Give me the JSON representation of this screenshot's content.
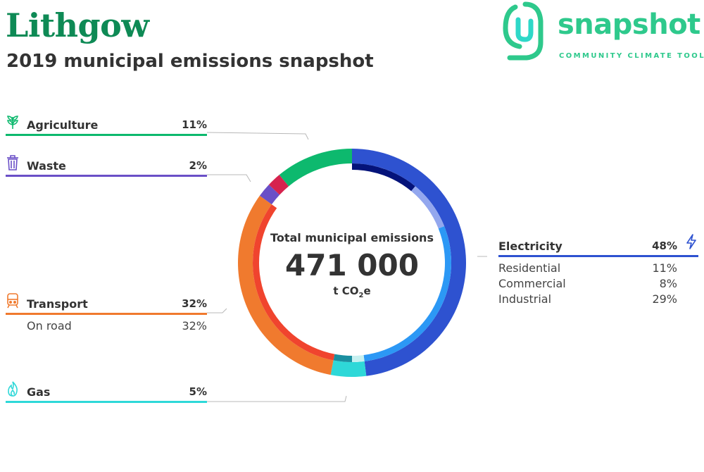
{
  "header": {
    "title": "Lithgow",
    "subtitle": "2019 municipal emissions snapshot"
  },
  "logo": {
    "word": "snapshot",
    "tagline": "COMMUNITY CLIMATE TOOL",
    "color": "#2ec98c"
  },
  "center": {
    "title": "Total municipal emissions",
    "value": "471 000",
    "unit_prefix": "t CO",
    "unit_sub": "2",
    "unit_suffix": "e"
  },
  "categories": {
    "agriculture": {
      "label": "Agriculture",
      "pct": "11%",
      "color": "#0db96e",
      "icon": "plant-icon"
    },
    "waste": {
      "label": "Waste",
      "pct": "2%",
      "color": "#6a4fc7",
      "icon": "trash-bin-icon"
    },
    "transport": {
      "label": "Transport",
      "pct": "32%",
      "color": "#f07a2e",
      "icon": "train-icon",
      "sub": [
        {
          "label": "On road",
          "pct": "32%"
        }
      ]
    },
    "gas": {
      "label": "Gas",
      "pct": "5%",
      "color": "#2ed8d8",
      "icon": "flame-icon"
    },
    "electricity": {
      "label": "Electricity",
      "pct": "48%",
      "color": "#2e52d0",
      "icon": "lightning-icon",
      "sub": [
        {
          "label": "Residential",
          "pct": "11%"
        },
        {
          "label": "Commercial",
          "pct": "8%"
        },
        {
          "label": "Industrial",
          "pct": "29%"
        }
      ]
    }
  },
  "chart_data": {
    "type": "pie",
    "variant": "donut",
    "total": 471000,
    "unit": "t CO2e",
    "series": [
      {
        "name": "Electricity",
        "value": 48,
        "color": "#2e52d0",
        "sub": [
          {
            "name": "Residential",
            "value": 11,
            "color": "#04137a"
          },
          {
            "name": "Commercial",
            "value": 8,
            "color": "#93a7ee"
          },
          {
            "name": "Industrial",
            "value": 29,
            "color": "#2c98f5"
          }
        ]
      },
      {
        "name": "Gas",
        "value": 5,
        "color": "#2ed8d8",
        "sub": [
          {
            "name": "",
            "value": 2,
            "color": "#c6f0f0"
          },
          {
            "name": "",
            "value": 3,
            "color": "#1b8fa0"
          }
        ]
      },
      {
        "name": "Transport",
        "value": 32,
        "color": "#f07a2e",
        "sub": [
          {
            "name": "On road",
            "value": 32,
            "color": "#f0442e"
          }
        ]
      },
      {
        "name": "Waste",
        "value": 2,
        "color": "#6a4fc7",
        "sub": []
      },
      {
        "name": "",
        "value": 2,
        "color": "#d6234e",
        "sub": []
      },
      {
        "name": "Agriculture",
        "value": 11,
        "color": "#0db96e",
        "sub": []
      }
    ]
  }
}
